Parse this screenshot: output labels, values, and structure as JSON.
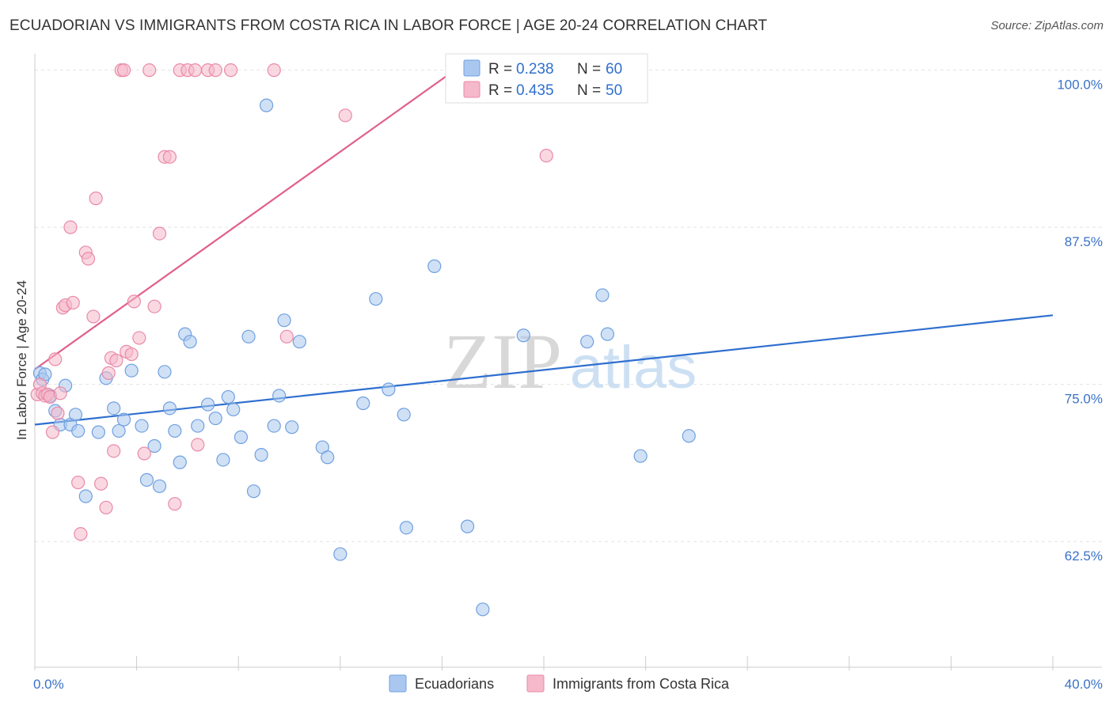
{
  "header": {
    "title": "ECUADORIAN VS IMMIGRANTS FROM COSTA RICA IN LABOR FORCE | AGE 20-24 CORRELATION CHART",
    "source": "Source: ZipAtlas.com"
  },
  "watermark": {
    "zip": "ZIP",
    "atlas": "atlas"
  },
  "legend": {
    "rows": [
      {
        "r_label": "R =",
        "r_value": "0.238",
        "n_label": "N =",
        "n_value": "60"
      },
      {
        "r_label": "R =",
        "r_value": "0.435",
        "n_label": "N =",
        "n_value": "50"
      }
    ]
  },
  "bottom_legend": [
    "Ecuadorians",
    "Immigrants from Costa Rica"
  ],
  "chart_data": {
    "type": "scatter",
    "title": "ECUADORIAN VS IMMIGRANTS FROM COSTA RICA IN LABOR FORCE | AGE 20-24 CORRELATION CHART",
    "xlabel": "",
    "ylabel": "In Labor Force | Age 20-24",
    "xlim": [
      0,
      40
    ],
    "ylim": [
      52.5,
      101.3
    ],
    "x_tick_labels": [
      {
        "value": 0,
        "label": "0.0%"
      },
      {
        "value": 40,
        "label": "40.0%"
      }
    ],
    "y_tick_labels": [
      {
        "value": 100,
        "label": "100.0%"
      },
      {
        "value": 87.5,
        "label": "87.5%"
      },
      {
        "value": 75,
        "label": "75.0%"
      },
      {
        "value": 62.5,
        "label": "62.5%"
      }
    ],
    "grid": true,
    "legend_position": "top-center",
    "series": [
      {
        "name": "Ecuadorians",
        "color": "#aac8ef",
        "stroke": "#6fa0e0",
        "line_color": "#2f6fcf",
        "trend": {
          "x": [
            0,
            40
          ],
          "y": [
            71.8,
            80.5
          ]
        },
        "points": [
          [
            0.2,
            75.9
          ],
          [
            0.3,
            75.4
          ],
          [
            0.4,
            75.8
          ],
          [
            0.6,
            74.1
          ],
          [
            0.8,
            72.9
          ],
          [
            1.0,
            71.8
          ],
          [
            1.2,
            74.9
          ],
          [
            1.4,
            71.8
          ],
          [
            1.6,
            72.6
          ],
          [
            1.7,
            71.3
          ],
          [
            2.0,
            66.1
          ],
          [
            2.5,
            71.2
          ],
          [
            2.8,
            75.5
          ],
          [
            3.1,
            73.1
          ],
          [
            3.3,
            71.3
          ],
          [
            3.5,
            72.2
          ],
          [
            3.8,
            76.1
          ],
          [
            4.2,
            71.7
          ],
          [
            4.4,
            67.4
          ],
          [
            4.7,
            70.1
          ],
          [
            4.9,
            66.9
          ],
          [
            5.1,
            76.0
          ],
          [
            5.3,
            73.1
          ],
          [
            5.5,
            71.3
          ],
          [
            5.7,
            68.8
          ],
          [
            5.9,
            79.0
          ],
          [
            6.1,
            78.4
          ],
          [
            6.4,
            71.7
          ],
          [
            6.8,
            73.4
          ],
          [
            7.1,
            72.3
          ],
          [
            7.4,
            69.0
          ],
          [
            7.6,
            74.0
          ],
          [
            7.8,
            73.0
          ],
          [
            8.1,
            70.8
          ],
          [
            8.4,
            78.8
          ],
          [
            8.6,
            66.5
          ],
          [
            8.9,
            69.4
          ],
          [
            9.1,
            97.2
          ],
          [
            9.4,
            71.7
          ],
          [
            9.6,
            74.1
          ],
          [
            9.8,
            80.1
          ],
          [
            10.1,
            71.6
          ],
          [
            10.4,
            78.4
          ],
          [
            11.3,
            70.0
          ],
          [
            11.5,
            69.2
          ],
          [
            12.0,
            61.5
          ],
          [
            12.9,
            73.5
          ],
          [
            13.4,
            81.8
          ],
          [
            13.9,
            74.6
          ],
          [
            14.5,
            72.6
          ],
          [
            14.6,
            63.6
          ],
          [
            15.7,
            84.4
          ],
          [
            17.0,
            63.7
          ],
          [
            17.6,
            57.1
          ],
          [
            19.2,
            78.9
          ],
          [
            21.7,
            78.4
          ],
          [
            22.3,
            82.1
          ],
          [
            22.5,
            79.0
          ],
          [
            23.8,
            69.3
          ],
          [
            25.7,
            70.9
          ]
        ]
      },
      {
        "name": "Immigrants from Costa Rica",
        "color": "#f6b8cb",
        "stroke": "#e98aa8",
        "line_color": "#e0608a",
        "trend": {
          "x": [
            0,
            16.5
          ],
          "y": [
            76.2,
            100.0
          ]
        },
        "points": [
          [
            0.1,
            74.2
          ],
          [
            0.2,
            75.0
          ],
          [
            0.3,
            74.3
          ],
          [
            0.4,
            74.1
          ],
          [
            0.5,
            74.2
          ],
          [
            0.6,
            74.0
          ],
          [
            0.7,
            71.2
          ],
          [
            0.8,
            77.0
          ],
          [
            0.9,
            72.7
          ],
          [
            1.0,
            74.3
          ],
          [
            1.1,
            81.1
          ],
          [
            1.2,
            81.3
          ],
          [
            1.4,
            87.5
          ],
          [
            1.5,
            81.5
          ],
          [
            1.7,
            67.2
          ],
          [
            1.8,
            63.1
          ],
          [
            2.0,
            85.5
          ],
          [
            2.1,
            85.0
          ],
          [
            2.3,
            80.4
          ],
          [
            2.4,
            89.8
          ],
          [
            2.6,
            67.1
          ],
          [
            2.8,
            65.2
          ],
          [
            2.9,
            75.9
          ],
          [
            3.0,
            77.1
          ],
          [
            3.1,
            69.7
          ],
          [
            3.2,
            76.9
          ],
          [
            3.4,
            100.0
          ],
          [
            3.5,
            100.0
          ],
          [
            3.6,
            77.6
          ],
          [
            3.8,
            77.4
          ],
          [
            3.9,
            81.6
          ],
          [
            4.1,
            78.7
          ],
          [
            4.3,
            69.5
          ],
          [
            4.5,
            100.0
          ],
          [
            4.7,
            81.2
          ],
          [
            4.9,
            87.0
          ],
          [
            5.1,
            93.1
          ],
          [
            5.3,
            93.1
          ],
          [
            5.5,
            65.5
          ],
          [
            5.7,
            100.0
          ],
          [
            6.0,
            100.0
          ],
          [
            6.3,
            100.0
          ],
          [
            6.4,
            70.2
          ],
          [
            6.8,
            100.0
          ],
          [
            7.1,
            100.0
          ],
          [
            7.7,
            100.0
          ],
          [
            9.4,
            100.0
          ],
          [
            9.9,
            78.8
          ],
          [
            12.2,
            96.4
          ],
          [
            20.1,
            93.2
          ]
        ]
      }
    ]
  }
}
